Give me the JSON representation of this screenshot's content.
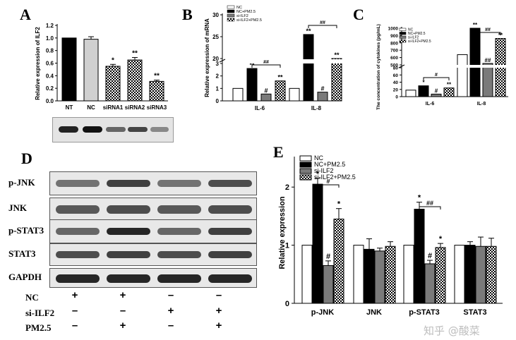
{
  "panels": {
    "a": "A",
    "b": "B",
    "c": "C",
    "d": "D",
    "e": "E"
  },
  "watermark": "知乎 @酸菜",
  "chart_data": [
    {
      "panel": "A",
      "type": "bar",
      "ylabel": "Relative expression  of  ILF2",
      "ylim": [
        0,
        1.2
      ],
      "yticks": [
        "0.0",
        "0.2",
        "0.4",
        "0.6",
        "0.8",
        "1.0",
        "1.2"
      ],
      "categories": [
        "NT",
        "NC",
        "siRNA1",
        "siRNA2",
        "siRNA3"
      ],
      "values": [
        1.0,
        0.98,
        0.55,
        0.65,
        0.31
      ],
      "errors": [
        0.0,
        0.04,
        0.03,
        0.04,
        0.02
      ],
      "annotations": [
        "",
        "",
        "*",
        "**",
        "**"
      ],
      "fills": [
        "#000000",
        "#d0d0d0",
        "checker",
        "checker",
        "checker"
      ]
    },
    {
      "panel": "B",
      "type": "bar",
      "ylabel": "Relative expression of mRNA",
      "yticks_lower": [
        "0",
        "1",
        "2",
        "3"
      ],
      "yticks_upper": [
        "20",
        "25",
        "30"
      ],
      "categories": [
        "IL-6",
        "IL-8"
      ],
      "legend": [
        "NC",
        "NC+PM2.5",
        "si-ILF2",
        "si-ILF2+PM2.5"
      ],
      "series": [
        {
          "name": "NC",
          "values": [
            1.0,
            1.0
          ]
        },
        {
          "name": "NC+PM2.5",
          "values": [
            2.6,
            25.5
          ]
        },
        {
          "name": "si-ILF2",
          "values": [
            0.55,
            0.7
          ]
        },
        {
          "name": "si-ILF2+PM2.5",
          "values": [
            1.6,
            16.0
          ]
        }
      ],
      "annotations": [
        [
          "",
          "**",
          "#",
          "**"
        ],
        [
          "",
          "**",
          "#",
          "**"
        ]
      ],
      "brackets": [
        "##",
        "##"
      ]
    },
    {
      "panel": "C",
      "type": "bar",
      "ylabel": "The concentration of cytokines (pg/mL)",
      "yticks_lower": [
        "0",
        "20",
        "40",
        "60",
        "80"
      ],
      "yticks_upper": [
        "500",
        "600",
        "700",
        "800",
        "900",
        "1000"
      ],
      "categories": [
        "IL-6",
        "IL-8"
      ],
      "legend": [
        "NC",
        "NC+PM2.5",
        "si-ILF2",
        "si-ILF2+PM2.5"
      ],
      "series": [
        {
          "name": "NC",
          "values": [
            18,
            640
          ]
        },
        {
          "name": "NC+PM2.5",
          "values": [
            30,
            1000
          ]
        },
        {
          "name": "si-ILF2",
          "values": [
            7,
            520
          ]
        },
        {
          "name": "si-ILF2+PM2.5",
          "values": [
            24,
            860
          ]
        }
      ],
      "annotations": [
        [
          "",
          "*",
          "#",
          "**"
        ],
        [
          "",
          "**",
          "##",
          "**"
        ]
      ],
      "brackets": [
        "#",
        "##"
      ]
    },
    {
      "panel": "E",
      "type": "bar",
      "ylabel": "Relative expression",
      "ylim": [
        0,
        2.5
      ],
      "yticks": [
        "0",
        "1",
        "2"
      ],
      "categories": [
        "p-JNK",
        "JNK",
        "p-STAT3",
        "STAT3"
      ],
      "legend": [
        "NC",
        "NC+PM2.5",
        "si-ILF2",
        "si-ILF2+PM2.5"
      ],
      "series": [
        {
          "name": "NC",
          "values": [
            1.0,
            1.0,
            1.0,
            1.0
          ],
          "errors": [
            0,
            0,
            0,
            0
          ]
        },
        {
          "name": "NC+PM2.5",
          "values": [
            2.05,
            0.93,
            1.62,
            1.0
          ],
          "errors": [
            0.1,
            0.18,
            0.12,
            0.06
          ]
        },
        {
          "name": "si-ILF2",
          "values": [
            0.65,
            0.9,
            0.68,
            0.98
          ],
          "errors": [
            0.08,
            0.05,
            0.06,
            0.16
          ]
        },
        {
          "name": "si-ILF2+PM2.5",
          "values": [
            1.45,
            0.98,
            0.96,
            0.98
          ],
          "errors": [
            0.18,
            0.08,
            0.07,
            0.14
          ]
        }
      ],
      "annotations": [
        [
          "",
          "*",
          "#",
          "*"
        ],
        [
          "",
          "",
          "",
          ""
        ],
        [
          "",
          "*",
          "#",
          "*"
        ],
        [
          "",
          "",
          "",
          ""
        ]
      ],
      "brackets": [
        "#",
        "",
        "##",
        ""
      ]
    }
  ],
  "blot_d": {
    "rows": [
      "p-JNK",
      "JNK",
      "p-STAT3",
      "STAT3",
      "GAPDH"
    ],
    "conditions": [
      {
        "label": "NC",
        "marks": [
          "+",
          "+",
          "–",
          "–"
        ]
      },
      {
        "label": "si-ILF2",
        "marks": [
          "–",
          "–",
          "+",
          "+"
        ]
      },
      {
        "label": "PM2.5",
        "marks": [
          "–",
          "+",
          "–",
          "+"
        ]
      }
    ]
  }
}
